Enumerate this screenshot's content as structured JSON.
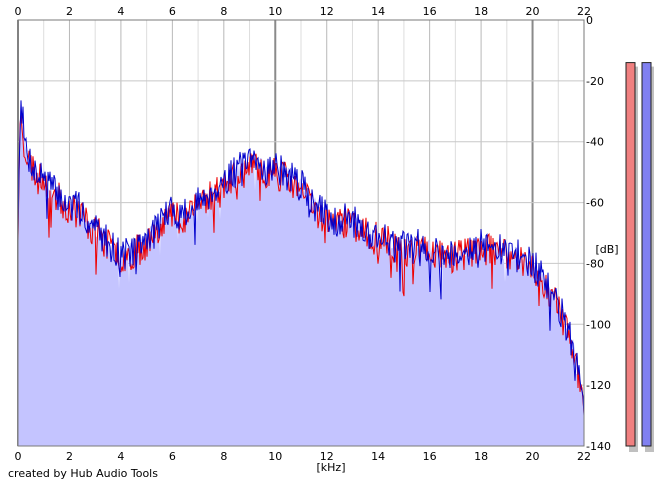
{
  "footer": {
    "credit": "created by Hub Audio Tools"
  },
  "chart_data": {
    "type": "area",
    "xlabel": "[kHz]",
    "ylabel": "[dB]",
    "xlim": [
      0,
      22
    ],
    "ylim": [
      -140,
      0
    ],
    "x_ticks": [
      0,
      2,
      4,
      6,
      8,
      10,
      12,
      14,
      16,
      18,
      20,
      22
    ],
    "y_ticks": [
      0,
      -20,
      -40,
      -60,
      -80,
      -100,
      -120,
      -140
    ],
    "major_x_gridlines": [
      0,
      10,
      20
    ],
    "grid": true,
    "series": [
      {
        "color": "#0000cc",
        "fill": "#c4c4ff",
        "x": [
          0,
          0.1,
          0.25,
          0.4,
          0.6,
          0.8,
          1.0,
          1.3,
          1.6,
          2.0,
          2.4,
          2.8,
          3.2,
          3.6,
          4.0,
          4.4,
          4.8,
          5.2,
          5.6,
          6.0,
          6.4,
          6.8,
          7.2,
          7.6,
          8.0,
          8.4,
          8.8,
          9.2,
          9.6,
          10.0,
          10.4,
          10.8,
          11.2,
          11.6,
          12.0,
          12.4,
          12.8,
          13.2,
          13.6,
          14.0,
          14.4,
          14.8,
          15.2,
          15.6,
          16.0,
          16.4,
          16.8,
          17.2,
          17.6,
          18.0,
          18.4,
          18.8,
          19.2,
          19.6,
          20.0,
          20.4,
          20.8,
          21.2,
          21.6,
          22.0
        ],
        "values": [
          -68,
          -23,
          -40,
          -45,
          -48,
          -52,
          -50,
          -55,
          -58,
          -61,
          -62,
          -67,
          -70,
          -74,
          -77,
          -76,
          -74,
          -70,
          -65,
          -63,
          -64,
          -62,
          -58,
          -56,
          -53,
          -50,
          -48,
          -47,
          -49,
          -48,
          -51,
          -53,
          -56,
          -62,
          -64,
          -66,
          -65,
          -67,
          -70,
          -71,
          -72,
          -74,
          -75,
          -74,
          -75,
          -76,
          -77,
          -76,
          -75,
          -74,
          -75,
          -76,
          -77,
          -78,
          -80,
          -85,
          -90,
          -98,
          -108,
          -128
        ]
      },
      {
        "color": "#ee0000",
        "x": [
          0,
          0.1,
          0.25,
          0.4,
          0.6,
          0.8,
          1.0,
          1.3,
          1.6,
          2.0,
          2.4,
          2.8,
          3.2,
          3.6,
          4.0,
          4.4,
          4.8,
          5.2,
          5.6,
          6.0,
          6.4,
          6.8,
          7.2,
          7.6,
          8.0,
          8.4,
          8.8,
          9.2,
          9.6,
          10.0,
          10.4,
          10.8,
          11.2,
          11.6,
          12.0,
          12.4,
          12.8,
          13.2,
          13.6,
          14.0,
          14.4,
          14.8,
          15.2,
          15.6,
          16.0,
          16.4,
          16.8,
          17.2,
          17.6,
          18.0,
          18.4,
          18.8,
          19.2,
          19.6,
          20.0,
          20.4,
          20.8,
          21.2,
          21.6,
          22.0
        ],
        "values": [
          -70,
          -27,
          -42,
          -46,
          -49,
          -53,
          -51,
          -56,
          -59,
          -62,
          -63,
          -68,
          -71,
          -75,
          -78,
          -77,
          -75,
          -71,
          -66,
          -64,
          -65,
          -63,
          -59,
          -57,
          -54,
          -52,
          -50,
          -49,
          -50,
          -50,
          -52,
          -55,
          -58,
          -63,
          -65,
          -67,
          -66,
          -68,
          -71,
          -72,
          -73,
          -75,
          -76,
          -75,
          -76,
          -77,
          -78,
          -77,
          -76,
          -75,
          -76,
          -77,
          -78,
          -79,
          -81,
          -86,
          -91,
          -99,
          -110,
          -124
        ]
      }
    ],
    "level_meters": [
      {
        "color": "#f08080",
        "level": 0.0
      },
      {
        "color": "#8080f0",
        "level": 0.0
      }
    ]
  }
}
